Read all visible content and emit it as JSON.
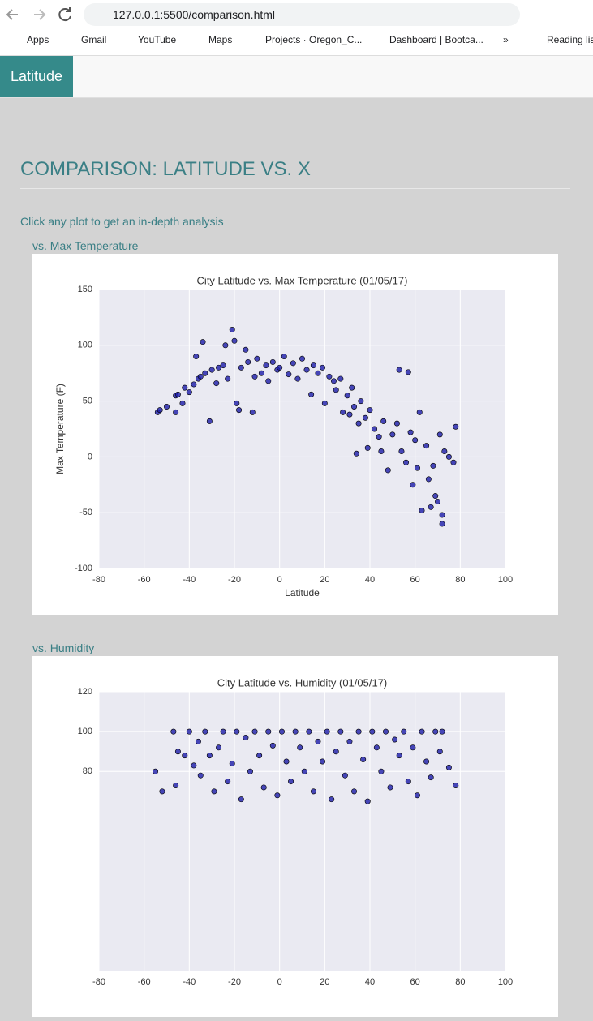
{
  "browser": {
    "url": "127.0.0.1:5500/comparison.html",
    "bookmarks": [
      "Apps",
      "Gmail",
      "YouTube",
      "Maps",
      "Projects · Oregon_C...",
      "Dashboard | Bootca...",
      "»",
      "Reading list"
    ]
  },
  "nav": {
    "brand": "Latitude"
  },
  "page": {
    "title": "COMPARISON: LATITUDE VS. X",
    "instruction": "Click any plot to get an in-depth analysis",
    "sections": [
      "vs. Max Temperature",
      "vs. Humidity"
    ]
  },
  "chart_data": [
    {
      "type": "scatter",
      "title": "City Latitude vs. Max Temperature (01/05/17)",
      "x_label": "Latitude",
      "y_label": "Max Temperature (F)",
      "xlim": [
        -80,
        100
      ],
      "xticks": [
        -80,
        -60,
        -40,
        -20,
        0,
        20,
        40,
        60,
        80,
        100
      ],
      "ylim": [
        -100,
        150
      ],
      "yticks": [
        -100,
        -50,
        0,
        50,
        100,
        150
      ],
      "grid": true,
      "color": "#1c1ca8",
      "x": [
        -54,
        -53,
        -50,
        -46,
        -46,
        -45,
        -43,
        -42,
        -40,
        -38,
        -37,
        -36,
        -35,
        -34,
        -33,
        -31,
        -30,
        -28,
        -27,
        -25,
        -24,
        -23,
        -21,
        -20,
        -19,
        -18,
        -17,
        -15,
        -14,
        -12,
        -11,
        -10,
        -8,
        -6,
        -5,
        -3,
        -1,
        0,
        2,
        4,
        6,
        8,
        10,
        12,
        14,
        15,
        17,
        19,
        20,
        22,
        24,
        25,
        27,
        28,
        30,
        31,
        32,
        33,
        34,
        35,
        36,
        38,
        39,
        40,
        42,
        44,
        45,
        46,
        48,
        50,
        52,
        53,
        54,
        56,
        57,
        58,
        59,
        60,
        61,
        62,
        63,
        65,
        66,
        67,
        68,
        69,
        70,
        71,
        72,
        72,
        73,
        75,
        77,
        78
      ],
      "values": [
        40,
        42,
        45,
        55,
        40,
        56,
        48,
        62,
        58,
        65,
        90,
        70,
        72,
        103,
        75,
        32,
        78,
        66,
        80,
        82,
        100,
        70,
        114,
        104,
        48,
        42,
        80,
        96,
        85,
        40,
        72,
        88,
        75,
        82,
        68,
        85,
        78,
        80,
        90,
        74,
        84,
        70,
        88,
        78,
        56,
        82,
        75,
        80,
        48,
        72,
        68,
        60,
        70,
        40,
        55,
        38,
        62,
        45,
        3,
        30,
        50,
        35,
        8,
        42,
        25,
        18,
        5,
        32,
        -12,
        20,
        30,
        78,
        5,
        -5,
        76,
        22,
        -25,
        15,
        -10,
        40,
        -48,
        10,
        -20,
        -45,
        -8,
        -35,
        -40,
        20,
        -52,
        -60,
        5,
        0,
        -5,
        27
      ]
    },
    {
      "type": "scatter",
      "title": "City Latitude vs. Humidity (01/05/17)",
      "xlim": [
        -80,
        100
      ],
      "xticks": [
        -80,
        -60,
        -40,
        -20,
        0,
        20,
        40,
        60,
        80,
        100
      ],
      "ylim": [
        -20,
        120
      ],
      "yticks": [
        80,
        100,
        120
      ],
      "grid": true,
      "color": "#1c1ca8",
      "x": [
        -55,
        -52,
        -47,
        -46,
        -45,
        -42,
        -40,
        -38,
        -36,
        -35,
        -33,
        -31,
        -29,
        -27,
        -25,
        -23,
        -21,
        -19,
        -17,
        -15,
        -13,
        -11,
        -9,
        -7,
        -5,
        -3,
        -1,
        1,
        3,
        5,
        7,
        9,
        11,
        13,
        15,
        17,
        19,
        21,
        23,
        25,
        27,
        29,
        31,
        33,
        35,
        37,
        39,
        41,
        43,
        45,
        47,
        49,
        51,
        53,
        55,
        57,
        59,
        61,
        63,
        65,
        67,
        69,
        71,
        72,
        75,
        78
      ],
      "values": [
        80,
        70,
        100,
        73,
        90,
        88,
        100,
        83,
        95,
        78,
        100,
        88,
        70,
        92,
        100,
        75,
        84,
        100,
        66,
        97,
        80,
        100,
        88,
        72,
        100,
        93,
        68,
        100,
        85,
        75,
        100,
        92,
        80,
        100,
        70,
        95,
        85,
        100,
        66,
        90,
        100,
        78,
        95,
        70,
        100,
        86,
        65,
        100,
        92,
        80,
        100,
        72,
        96,
        88,
        100,
        75,
        92,
        68,
        100,
        85,
        77,
        100,
        90,
        100,
        82,
        73
      ]
    }
  ]
}
